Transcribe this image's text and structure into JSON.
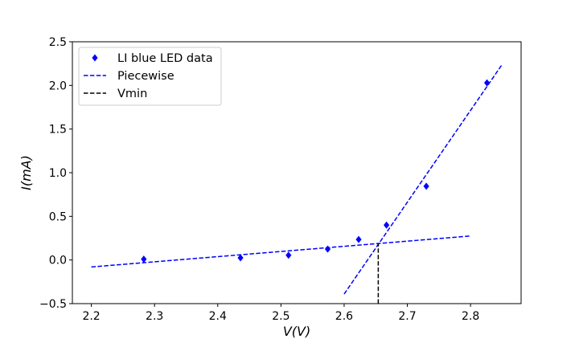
{
  "chart_data": {
    "type": "scatter",
    "title": "",
    "xlabel": "V(V)",
    "ylabel": "I(mA)",
    "xlim": [
      2.17,
      2.88
    ],
    "ylim": [
      -0.5,
      2.5
    ],
    "x_ticks": [
      2.2,
      2.3,
      2.4,
      2.5,
      2.6,
      2.7,
      2.8
    ],
    "y_ticks": [
      -0.5,
      0.0,
      0.5,
      1.0,
      1.5,
      2.0,
      2.5
    ],
    "x_tick_labels": [
      "2.2",
      "2.3",
      "2.4",
      "2.5",
      "2.6",
      "2.7",
      "2.8"
    ],
    "y_tick_labels": [
      "−0.5",
      "0.0",
      "0.5",
      "1.0",
      "1.5",
      "2.0",
      "2.5"
    ],
    "grid": false,
    "legend_position": "top-left",
    "series": [
      {
        "name": "LI blue LED data",
        "kind": "markers",
        "marker": "diamond",
        "color": "#0000ff",
        "x": [
          2.283,
          2.436,
          2.512,
          2.574,
          2.623,
          2.667,
          2.73,
          2.826
        ],
        "y": [
          0.01,
          0.025,
          0.055,
          0.125,
          0.235,
          0.4,
          0.845,
          2.03
        ]
      },
      {
        "name": "Piecewise",
        "kind": "dashed-lines",
        "color": "#0000ff",
        "segments": [
          {
            "x": [
              2.2,
              2.8
            ],
            "y": [
              -0.08,
              0.275
            ]
          },
          {
            "x": [
              2.6,
              2.85
            ],
            "y": [
              -0.39,
              2.24
            ]
          }
        ]
      },
      {
        "name": "Vmin",
        "kind": "dashed-vline",
        "color": "#000000",
        "x": 2.654,
        "y_range": [
          -0.5,
          0.185
        ]
      }
    ]
  }
}
